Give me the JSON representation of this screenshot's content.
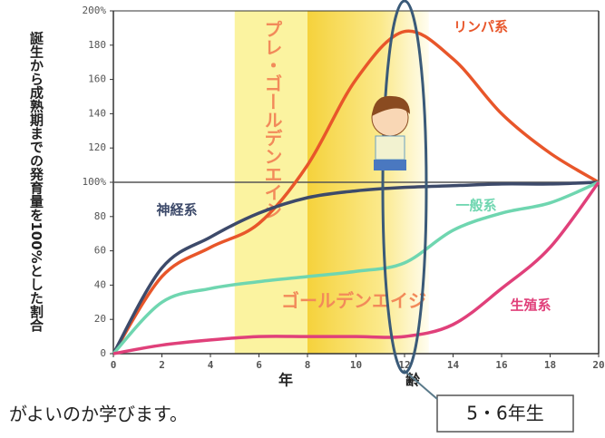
{
  "chart_data": {
    "type": "line",
    "ylabel": "誕生から成熟期までの発育量を100%とした割合",
    "xlabel": "年齢",
    "x": [
      0,
      2,
      4,
      6,
      8,
      10,
      12,
      14,
      16,
      18,
      20
    ],
    "xlim": [
      0,
      20
    ],
    "xticks": [
      0,
      2,
      4,
      6,
      8,
      10,
      12,
      14,
      16,
      18,
      20
    ],
    "ylim": [
      0,
      200
    ],
    "yticks": [
      0,
      20,
      40,
      60,
      80,
      {
        "value": 100,
        "label": "100%"
      },
      120,
      140,
      160,
      180,
      {
        "value": 200,
        "label": "200%"
      }
    ],
    "hline": 100,
    "bands": [
      {
        "label": "プレ・ゴールデンエイジ",
        "from": 5,
        "to": 8,
        "color": "#fbf3a0"
      },
      {
        "label": "ゴールデンエイジ",
        "from": 8,
        "to": 13,
        "color": "#f8df5a"
      }
    ],
    "highlight_x": 12,
    "series": [
      {
        "name": "リンパ系",
        "color": "#e8562a",
        "values": [
          0,
          45,
          62,
          76,
          110,
          160,
          188,
          172,
          140,
          117,
          100
        ]
      },
      {
        "name": "神経系",
        "color": "#3d4a6a",
        "values": [
          0,
          50,
          68,
          82,
          91,
          95,
          97,
          98,
          99,
          99,
          100
        ]
      },
      {
        "name": "一般系",
        "color": "#6fd6b0",
        "values": [
          0,
          30,
          38,
          42,
          45,
          48,
          53,
          72,
          82,
          88,
          100
        ]
      },
      {
        "name": "生殖系",
        "color": "#e0407a",
        "values": [
          0,
          5,
          8,
          10,
          10,
          10,
          10,
          17,
          38,
          62,
          100
        ]
      }
    ]
  },
  "caption": "がよいのか学びます。",
  "badge": "5・6年生"
}
